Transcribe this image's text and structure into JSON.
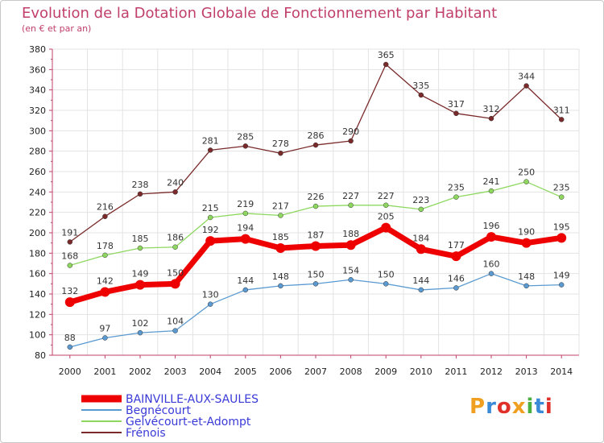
{
  "header": {
    "title": "Evolution de la Dotation Globale de Fonctionnement par Habitant",
    "subtitle": "(en € et par an)"
  },
  "logo": {
    "text": "Proxiti",
    "colors": [
      "#f0a020",
      "#3a8ad8",
      "#e0302a",
      "#f0a020",
      "#4ab040",
      "#3a8ad8",
      "#e0302a"
    ]
  },
  "chart_data": {
    "type": "line",
    "x": [
      2000,
      2001,
      2002,
      2003,
      2004,
      2005,
      2006,
      2007,
      2008,
      2009,
      2010,
      2011,
      2012,
      2013,
      2014
    ],
    "ylim": [
      80,
      380
    ],
    "yticks": [
      80,
      100,
      120,
      140,
      160,
      180,
      200,
      220,
      240,
      260,
      280,
      300,
      320,
      340,
      360,
      380
    ],
    "grid": true,
    "legend_position": "bottom-left",
    "series": [
      {
        "name": "Frénois",
        "color": "#7a2a2a",
        "values": [
          191,
          216,
          238,
          240,
          281,
          285,
          278,
          286,
          290,
          365,
          335,
          317,
          312,
          344,
          311
        ]
      },
      {
        "name": "Gelvécourt-et-Adompt",
        "color": "#8ed860",
        "values": [
          168,
          178,
          185,
          186,
          215,
          219,
          217,
          226,
          227,
          227,
          223,
          235,
          241,
          250,
          235
        ]
      },
      {
        "name": "Begnécourt",
        "color": "#5a9ad0",
        "values": [
          88,
          97,
          102,
          104,
          130,
          144,
          148,
          150,
          154,
          150,
          144,
          146,
          160,
          148,
          149
        ]
      },
      {
        "name": "BAINVILLE-AUX-SAULES",
        "color": "#ee0000",
        "values": [
          132,
          142,
          149,
          150,
          192,
          194,
          185,
          187,
          188,
          205,
          184,
          177,
          196,
          190,
          195
        ]
      }
    ],
    "legend_order": [
      "BAINVILLE-AUX-SAULES",
      "Begnécourt",
      "Gelvécourt-et-Adompt",
      "Frénois"
    ]
  }
}
